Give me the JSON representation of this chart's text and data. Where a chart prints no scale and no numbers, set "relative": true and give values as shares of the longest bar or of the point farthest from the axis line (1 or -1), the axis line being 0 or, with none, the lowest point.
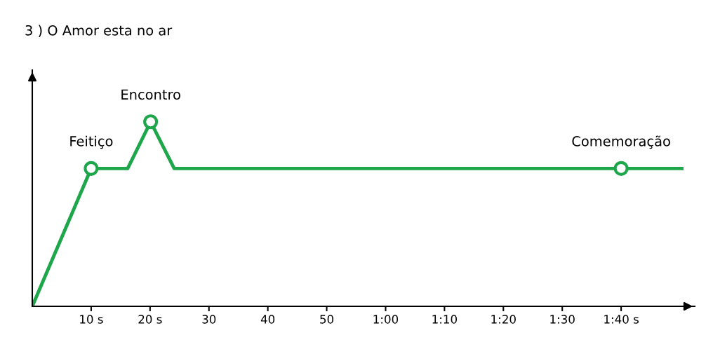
{
  "chart_data": {
    "type": "line",
    "title": "3 ) O Amor esta no ar",
    "relative": true,
    "series": [
      {
        "color": "#1ea64b",
        "marker": "none",
        "x": [
          0,
          10,
          16.2,
          20.1,
          24.1,
          100,
          110.3
        ],
        "values": [
          0,
          0.747,
          0.747,
          1,
          0.747,
          0.747,
          0.747
        ]
      },
      {
        "type": "scatter",
        "color": "#1ea64b",
        "marker": "circle",
        "x": [
          10,
          20.1,
          100
        ],
        "values": [
          0.747,
          1,
          0.747
        ]
      }
    ],
    "annotations": [
      {
        "text": "Feitiço",
        "x": 10,
        "y": 0.747
      },
      {
        "text": "Encontro",
        "x": 20.1,
        "y": 1
      },
      {
        "text": "Comemoração",
        "x": 100,
        "y": 0.747
      }
    ],
    "xlim": [
      0,
      112.5
    ],
    "xticks": [
      {
        "value": 10,
        "label": "10 s"
      },
      {
        "value": 20,
        "label": "20 s"
      },
      30,
      40,
      50,
      {
        "value": 60,
        "label": "1:00"
      },
      {
        "value": 70,
        "label": "1:10"
      },
      {
        "value": 80,
        "label": "1:20"
      },
      {
        "value": 90,
        "label": "1:30"
      },
      {
        "value": 100,
        "label": "1:40 s"
      }
    ],
    "grid": false,
    "legend": false
  }
}
